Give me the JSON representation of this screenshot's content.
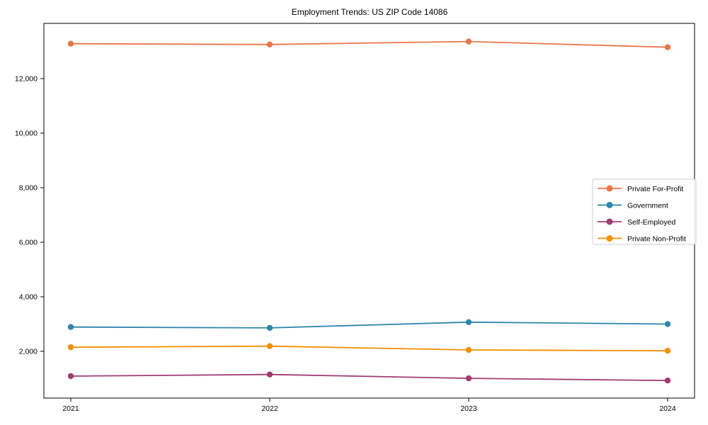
{
  "chart_data": {
    "type": "line",
    "title": "Employment Trends: US ZIP Code 14086",
    "xlabel": "",
    "ylabel": "",
    "categories": [
      "2021",
      "2022",
      "2023",
      "2024"
    ],
    "series": [
      {
        "name": "Private For-Profit",
        "color": "#E8764B",
        "values": [
          13280,
          13250,
          13360,
          13150
        ]
      },
      {
        "name": "Government",
        "color": "#2E86AB",
        "values": [
          2890,
          2860,
          3070,
          3000
        ]
      },
      {
        "name": "Self-Employed",
        "color": "#A23B72",
        "values": [
          1090,
          1150,
          1010,
          930
        ]
      },
      {
        "name": "Private Non-Profit",
        "color": "#F18F01",
        "values": [
          2150,
          2190,
          2050,
          2020
        ]
      }
    ],
    "yticks": [
      2000,
      4000,
      6000,
      8000,
      10000,
      12000
    ],
    "ytick_labels": [
      "2,000",
      "4,000",
      "6,000",
      "8,000",
      "10,000",
      "12,000"
    ],
    "ylim": [
      285,
      14025
    ],
    "grid": false,
    "legend_position": "right",
    "frame_color": "#000000",
    "legend_border_color": "#cccccc"
  }
}
